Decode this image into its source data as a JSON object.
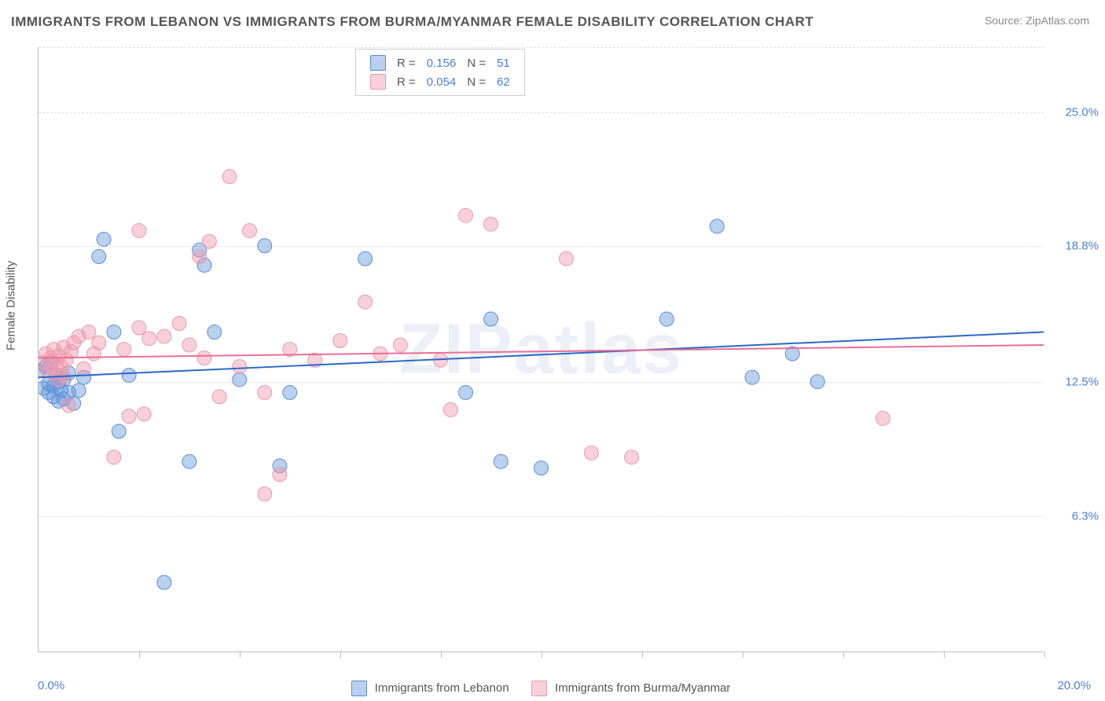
{
  "title": "IMMIGRANTS FROM LEBANON VS IMMIGRANTS FROM BURMA/MYANMAR FEMALE DISABILITY CORRELATION CHART",
  "source": "Source: ZipAtlas.com",
  "watermark": "ZIPatlas",
  "yaxis_title": "Female Disability",
  "chart": {
    "type": "scatter",
    "xlim": [
      0.0,
      20.0
    ],
    "ylim": [
      0.0,
      28.0
    ],
    "yticks": [
      6.3,
      12.5,
      18.8,
      25.0
    ],
    "ytick_labels": [
      "6.3%",
      "12.5%",
      "18.8%",
      "25.0%"
    ],
    "xtick_count": 10,
    "xaxis_left_label": "0.0%",
    "xaxis_right_label": "20.0%",
    "background_color": "#ffffff",
    "grid_color": "#dddddd",
    "axis_color": "#bbbbbb",
    "label_color": "#4a7fd6",
    "marker_radius": 9,
    "marker_opacity": 0.55,
    "line_width": 2
  },
  "series": [
    {
      "key": "lebanon",
      "label": "Immigrants from Lebanon",
      "color_fill": "rgba(100,150,220,0.45)",
      "color_stroke": "#5a8fd6",
      "line_color": "#2a68c8",
      "R": "0.156",
      "N": "51",
      "trend": {
        "y_at_xmin": 12.7,
        "y_at_xmax": 14.8
      },
      "points": [
        [
          0.0,
          13.0
        ],
        [
          0.1,
          12.2
        ],
        [
          0.15,
          13.2
        ],
        [
          0.2,
          12.4
        ],
        [
          0.2,
          12.0
        ],
        [
          0.25,
          13.4
        ],
        [
          0.3,
          12.3
        ],
        [
          0.3,
          11.8
        ],
        [
          0.35,
          12.8
        ],
        [
          0.4,
          12.5
        ],
        [
          0.4,
          11.6
        ],
        [
          0.45,
          12.1
        ],
        [
          0.5,
          12.6
        ],
        [
          0.5,
          11.7
        ],
        [
          0.6,
          12.0
        ],
        [
          0.6,
          12.9
        ],
        [
          0.7,
          11.5
        ],
        [
          0.8,
          12.1
        ],
        [
          0.9,
          12.7
        ],
        [
          1.2,
          18.3
        ],
        [
          1.3,
          19.1
        ],
        [
          1.5,
          14.8
        ],
        [
          1.6,
          10.2
        ],
        [
          1.8,
          12.8
        ],
        [
          2.5,
          3.2
        ],
        [
          3.0,
          8.8
        ],
        [
          3.2,
          18.6
        ],
        [
          3.3,
          17.9
        ],
        [
          3.5,
          14.8
        ],
        [
          4.0,
          12.6
        ],
        [
          4.5,
          18.8
        ],
        [
          4.8,
          8.6
        ],
        [
          5.0,
          12.0
        ],
        [
          6.5,
          18.2
        ],
        [
          8.5,
          12.0
        ],
        [
          9.0,
          15.4
        ],
        [
          9.2,
          8.8
        ],
        [
          10.0,
          8.5
        ],
        [
          12.5,
          15.4
        ],
        [
          13.5,
          19.7
        ],
        [
          14.2,
          12.7
        ],
        [
          15.0,
          13.8
        ],
        [
          15.5,
          12.5
        ]
      ]
    },
    {
      "key": "burma",
      "label": "Immigrants from Burma/Myanmar",
      "color_fill": "rgba(240,150,170,0.45)",
      "color_stroke": "#e89ab0",
      "line_color": "#e86f94",
      "R": "0.054",
      "N": "62",
      "trend": {
        "y_at_xmin": 13.6,
        "y_at_xmax": 14.2
      },
      "points": [
        [
          0.1,
          13.4
        ],
        [
          0.15,
          13.8
        ],
        [
          0.2,
          13.0
        ],
        [
          0.25,
          13.6
        ],
        [
          0.3,
          12.9
        ],
        [
          0.3,
          14.0
        ],
        [
          0.35,
          13.3
        ],
        [
          0.4,
          12.6
        ],
        [
          0.4,
          13.7
        ],
        [
          0.45,
          13.2
        ],
        [
          0.5,
          14.1
        ],
        [
          0.5,
          12.8
        ],
        [
          0.55,
          13.5
        ],
        [
          0.6,
          11.4
        ],
        [
          0.65,
          13.9
        ],
        [
          0.7,
          14.3
        ],
        [
          0.8,
          14.6
        ],
        [
          0.9,
          13.1
        ],
        [
          1.0,
          14.8
        ],
        [
          1.1,
          13.8
        ],
        [
          1.2,
          14.3
        ],
        [
          1.5,
          9.0
        ],
        [
          1.7,
          14.0
        ],
        [
          1.8,
          10.9
        ],
        [
          2.0,
          15.0
        ],
        [
          2.0,
          19.5
        ],
        [
          2.1,
          11.0
        ],
        [
          2.2,
          14.5
        ],
        [
          2.5,
          14.6
        ],
        [
          2.8,
          15.2
        ],
        [
          3.0,
          14.2
        ],
        [
          3.2,
          18.3
        ],
        [
          3.3,
          13.6
        ],
        [
          3.4,
          19.0
        ],
        [
          3.6,
          11.8
        ],
        [
          3.8,
          22.0
        ],
        [
          4.0,
          13.2
        ],
        [
          4.2,
          19.5
        ],
        [
          4.5,
          7.3
        ],
        [
          4.5,
          12.0
        ],
        [
          4.8,
          8.2
        ],
        [
          5.0,
          14.0
        ],
        [
          5.5,
          13.5
        ],
        [
          6.0,
          14.4
        ],
        [
          6.5,
          16.2
        ],
        [
          6.8,
          13.8
        ],
        [
          7.2,
          14.2
        ],
        [
          8.0,
          13.5
        ],
        [
          8.2,
          11.2
        ],
        [
          8.5,
          20.2
        ],
        [
          9.0,
          19.8
        ],
        [
          10.5,
          18.2
        ],
        [
          11.0,
          9.2
        ],
        [
          11.8,
          9.0
        ],
        [
          16.8,
          10.8
        ]
      ]
    }
  ],
  "legend_top_cols": [
    "R =",
    "N ="
  ]
}
